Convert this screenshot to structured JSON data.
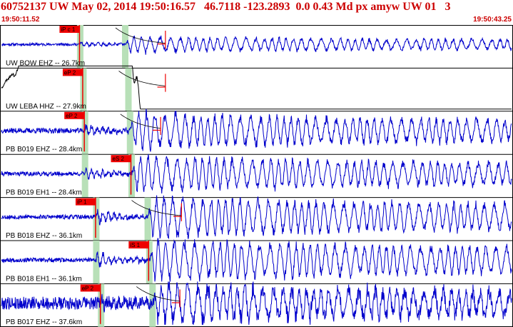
{
  "header": {
    "title": "60752137 UW May 02, 2014 19:50:16.57   46.7118 -123.2893  0.0 0.43 Md px amyw UW 01   3",
    "start_time": "19:50:11.52",
    "end_time": "19:50:43.25"
  },
  "colors": {
    "title": "#cc0000",
    "trace": "#0000cc",
    "trace_alt": "#000000",
    "pick": "#ee0000",
    "window": "#b8e0b8",
    "border": "#000000"
  },
  "traces": [
    {
      "label": "UW BOW EHZ -- 26.7km",
      "pick1": "iP c 1",
      "pick2": "",
      "p_time": 4.9,
      "s_time": 7.7,
      "coda_time": 10.2,
      "amp": 0.25,
      "noise": 0.06,
      "seed": 11,
      "color": "trace",
      "drift": 0
    },
    {
      "label": "UW LEBA HHZ -- 27.9km",
      "pick1": "eP 2",
      "pick2": "",
      "p_time": 5.1,
      "s_time": 7.9,
      "coda_time": 10.2,
      "amp": 0.3,
      "noise": 0.05,
      "seed": 23,
      "color": "trace_alt",
      "drift": 1
    },
    {
      "label": "PB B019 EHZ -- 28.4km",
      "pick1": "eP 2",
      "pick2": "",
      "p_time": 5.2,
      "s_time": 8.0,
      "coda_time": 9.9,
      "amp": 0.55,
      "noise": 0.12,
      "seed": 37,
      "color": "trace",
      "drift": 0
    },
    {
      "label": "PB B019 EH1 -- 28.4km",
      "pick1": "",
      "pick2": "eS 2",
      "p_time": 5.2,
      "s_time": 8.1,
      "coda_time": 0,
      "amp": 0.55,
      "noise": 0.1,
      "seed": 41,
      "color": "trace",
      "drift": 0
    },
    {
      "label": "PB B018 EHZ -- 36.1km",
      "pick1": "iP 1",
      "pick2": "",
      "p_time": 5.9,
      "s_time": 9.1,
      "coda_time": 11.2,
      "amp": 0.65,
      "noise": 0.1,
      "seed": 53,
      "color": "trace",
      "drift": 0
    },
    {
      "label": "PB B018 EH1 -- 36.1km",
      "pick1": "",
      "pick2": "iS 1",
      "p_time": 5.9,
      "s_time": 9.2,
      "coda_time": 0,
      "amp": 0.65,
      "noise": 0.1,
      "seed": 67,
      "color": "trace",
      "drift": 0
    },
    {
      "label": "PB B017 EHZ -- 37.6km",
      "pick1": "eP 2",
      "pick2": "",
      "p_time": 6.2,
      "s_time": 9.4,
      "coda_time": 11.1,
      "amp": 0.6,
      "noise": 0.3,
      "seed": 79,
      "color": "trace",
      "drift": 0
    }
  ]
}
